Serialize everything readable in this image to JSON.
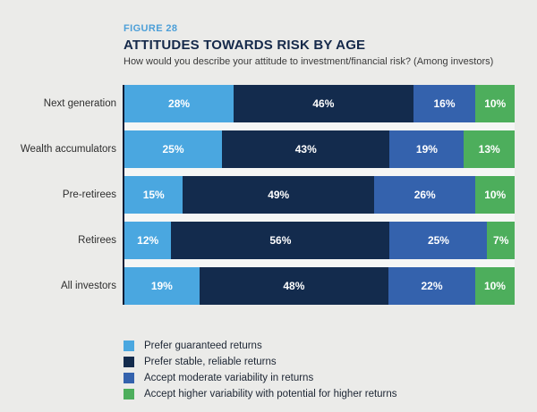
{
  "header": {
    "figure_label": "FIGURE 28",
    "title": "ATTITUDES TOWARDS RISK BY AGE",
    "subtitle": "How would you describe your attitude to investment/financial risk? (Among investors)"
  },
  "colors": {
    "background": "#EBEBE9",
    "figure_label": "#4C9FD8",
    "title_text": "#15294A",
    "axis_line": "#0B1B33",
    "row_gap": "#F5F6F5",
    "series": [
      "#4AA7E0",
      "#132B4D",
      "#3462AD",
      "#4DAE5C"
    ]
  },
  "chart_data": {
    "type": "bar",
    "orientation": "horizontal",
    "stacked": true,
    "title": "ATTITUDES TOWARDS RISK BY AGE",
    "subtitle": "How would you describe your attitude to investment/financial risk? (Among investors)",
    "categories": [
      "Next generation",
      "Wealth accumulators",
      "Pre-retirees",
      "Retirees",
      "All investors"
    ],
    "series": [
      {
        "name": "Prefer guaranteed returns",
        "color": "#4AA7E0",
        "values": [
          28,
          25,
          15,
          12,
          19
        ]
      },
      {
        "name": "Prefer stable, reliable returns",
        "color": "#132B4D",
        "values": [
          46,
          43,
          49,
          56,
          48
        ]
      },
      {
        "name": "Accept moderate variability in returns",
        "color": "#3462AD",
        "values": [
          16,
          19,
          26,
          25,
          22
        ]
      },
      {
        "name": "Accept higher variability with potential for higher returns",
        "color": "#4DAE5C",
        "values": [
          10,
          13,
          10,
          7,
          10
        ]
      }
    ],
    "value_suffix": "%",
    "xlim": [
      0,
      100
    ],
    "grid": false,
    "legend_position": "bottom"
  }
}
